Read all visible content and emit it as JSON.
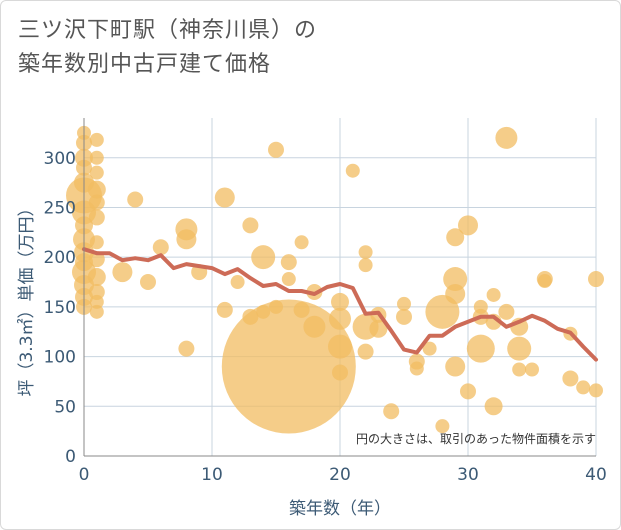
{
  "chart_data": {
    "type": "scatter",
    "title_line1": "三ツ沢下町駅（神奈川県）の",
    "title_line2": "築年数別中古戸建て価格",
    "xlabel": "築年数（年）",
    "ylabel": "坪（3.3㎡）単価（万円）",
    "xlim": [
      0,
      40
    ],
    "ylim": [
      0,
      340
    ],
    "x_ticks": [
      0,
      10,
      20,
      30,
      40
    ],
    "y_ticks": [
      0,
      50,
      100,
      150,
      200,
      250,
      300
    ],
    "note": "円の大きさは、取引のあった物件面積を示す",
    "colors": {
      "bubble": "#f2bc62",
      "line": "#cd6b57",
      "grid": "#c8d4df"
    },
    "bubbles": [
      {
        "x": 0,
        "y": 325,
        "r": 7
      },
      {
        "x": 0,
        "y": 315,
        "r": 8
      },
      {
        "x": 0,
        "y": 300,
        "r": 9
      },
      {
        "x": 0,
        "y": 290,
        "r": 8
      },
      {
        "x": 0,
        "y": 275,
        "r": 10
      },
      {
        "x": 0,
        "y": 262,
        "r": 18
      },
      {
        "x": 0,
        "y": 245,
        "r": 12
      },
      {
        "x": 0,
        "y": 232,
        "r": 9
      },
      {
        "x": 0,
        "y": 218,
        "r": 11
      },
      {
        "x": 0,
        "y": 205,
        "r": 10
      },
      {
        "x": 0,
        "y": 195,
        "r": 9
      },
      {
        "x": 0,
        "y": 185,
        "r": 12
      },
      {
        "x": 0,
        "y": 172,
        "r": 10
      },
      {
        "x": 0,
        "y": 160,
        "r": 9
      },
      {
        "x": 0,
        "y": 150,
        "r": 8
      },
      {
        "x": 1,
        "y": 318,
        "r": 7
      },
      {
        "x": 1,
        "y": 300,
        "r": 7
      },
      {
        "x": 1,
        "y": 285,
        "r": 7
      },
      {
        "x": 1,
        "y": 268,
        "r": 9
      },
      {
        "x": 1,
        "y": 255,
        "r": 8
      },
      {
        "x": 1,
        "y": 240,
        "r": 8
      },
      {
        "x": 1,
        "y": 215,
        "r": 7
      },
      {
        "x": 1,
        "y": 198,
        "r": 8
      },
      {
        "x": 1,
        "y": 180,
        "r": 9
      },
      {
        "x": 1,
        "y": 165,
        "r": 8
      },
      {
        "x": 1,
        "y": 155,
        "r": 7
      },
      {
        "x": 1,
        "y": 145,
        "r": 7
      },
      {
        "x": 3,
        "y": 185,
        "r": 10
      },
      {
        "x": 4,
        "y": 258,
        "r": 8
      },
      {
        "x": 5,
        "y": 175,
        "r": 8
      },
      {
        "x": 6,
        "y": 210,
        "r": 8
      },
      {
        "x": 8,
        "y": 228,
        "r": 11
      },
      {
        "x": 8,
        "y": 218,
        "r": 10
      },
      {
        "x": 8,
        "y": 108,
        "r": 8
      },
      {
        "x": 9,
        "y": 185,
        "r": 8
      },
      {
        "x": 11,
        "y": 260,
        "r": 10
      },
      {
        "x": 11,
        "y": 147,
        "r": 8
      },
      {
        "x": 12,
        "y": 175,
        "r": 7
      },
      {
        "x": 13,
        "y": 232,
        "r": 8
      },
      {
        "x": 13,
        "y": 140,
        "r": 8
      },
      {
        "x": 14,
        "y": 200,
        "r": 12
      },
      {
        "x": 14,
        "y": 145,
        "r": 7
      },
      {
        "x": 15,
        "y": 308,
        "r": 8
      },
      {
        "x": 15,
        "y": 150,
        "r": 7
      },
      {
        "x": 16,
        "y": 195,
        "r": 8
      },
      {
        "x": 16,
        "y": 178,
        "r": 7
      },
      {
        "x": 16,
        "y": 90,
        "r": 67
      },
      {
        "x": 17,
        "y": 215,
        "r": 7
      },
      {
        "x": 17,
        "y": 147,
        "r": 8
      },
      {
        "x": 18,
        "y": 130,
        "r": 11
      },
      {
        "x": 18,
        "y": 165,
        "r": 8
      },
      {
        "x": 20,
        "y": 155,
        "r": 9
      },
      {
        "x": 20,
        "y": 138,
        "r": 11
      },
      {
        "x": 20,
        "y": 110,
        "r": 12
      },
      {
        "x": 20,
        "y": 84,
        "r": 8
      },
      {
        "x": 21,
        "y": 287,
        "r": 7
      },
      {
        "x": 22,
        "y": 205,
        "r": 7
      },
      {
        "x": 22,
        "y": 192,
        "r": 7
      },
      {
        "x": 22,
        "y": 130,
        "r": 13
      },
      {
        "x": 22,
        "y": 105,
        "r": 8
      },
      {
        "x": 23,
        "y": 128,
        "r": 9
      },
      {
        "x": 23,
        "y": 142,
        "r": 8
      },
      {
        "x": 24,
        "y": 45,
        "r": 8
      },
      {
        "x": 25,
        "y": 153,
        "r": 7
      },
      {
        "x": 25,
        "y": 140,
        "r": 8
      },
      {
        "x": 26,
        "y": 95,
        "r": 8
      },
      {
        "x": 26,
        "y": 88,
        "r": 7
      },
      {
        "x": 27,
        "y": 108,
        "r": 7
      },
      {
        "x": 28,
        "y": 145,
        "r": 17
      },
      {
        "x": 28,
        "y": 30,
        "r": 7
      },
      {
        "x": 29,
        "y": 220,
        "r": 9
      },
      {
        "x": 29,
        "y": 178,
        "r": 12
      },
      {
        "x": 29,
        "y": 163,
        "r": 10
      },
      {
        "x": 29,
        "y": 90,
        "r": 10
      },
      {
        "x": 30,
        "y": 232,
        "r": 10
      },
      {
        "x": 30,
        "y": 65,
        "r": 8
      },
      {
        "x": 31,
        "y": 150,
        "r": 7
      },
      {
        "x": 31,
        "y": 140,
        "r": 8
      },
      {
        "x": 31,
        "y": 108,
        "r": 14
      },
      {
        "x": 32,
        "y": 162,
        "r": 7
      },
      {
        "x": 32,
        "y": 135,
        "r": 8
      },
      {
        "x": 32,
        "y": 50,
        "r": 9
      },
      {
        "x": 33,
        "y": 320,
        "r": 11
      },
      {
        "x": 33,
        "y": 145,
        "r": 8
      },
      {
        "x": 34,
        "y": 130,
        "r": 9
      },
      {
        "x": 34,
        "y": 108,
        "r": 12
      },
      {
        "x": 34,
        "y": 87,
        "r": 7
      },
      {
        "x": 35,
        "y": 87,
        "r": 7
      },
      {
        "x": 36,
        "y": 178,
        "r": 8
      },
      {
        "x": 36,
        "y": 176,
        "r": 7
      },
      {
        "x": 38,
        "y": 123,
        "r": 7
      },
      {
        "x": 38,
        "y": 78,
        "r": 8
      },
      {
        "x": 39,
        "y": 69,
        "r": 7
      },
      {
        "x": 40,
        "y": 178,
        "r": 8
      },
      {
        "x": 40,
        "y": 66,
        "r": 7
      }
    ],
    "trend_line": {
      "x": [
        0,
        1,
        2,
        3,
        4,
        5,
        6,
        7,
        8,
        9,
        10,
        11,
        12,
        13,
        14,
        15,
        16,
        17,
        18,
        19,
        20,
        21,
        22,
        23,
        24,
        25,
        26,
        27,
        28,
        29,
        30,
        31,
        32,
        33,
        34,
        35,
        36,
        37,
        38,
        39,
        40
      ],
      "y": [
        208,
        204,
        204,
        197,
        199,
        197,
        202,
        189,
        193,
        191,
        189,
        183,
        188,
        179,
        171,
        173,
        166,
        166,
        163,
        170,
        173,
        169,
        143,
        144,
        126,
        107,
        104,
        121,
        121,
        130,
        135,
        140,
        140,
        130,
        135,
        141,
        136,
        128,
        124,
        110,
        97
      ]
    }
  }
}
